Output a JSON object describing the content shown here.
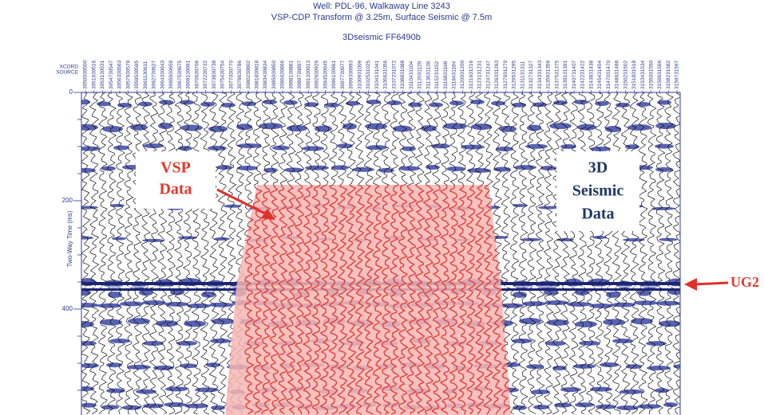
{
  "header": {
    "title": "Well: PDL-96, Walkaway Line 3243",
    "subtitle": "VSP-CDP Transform @ 3.25m, Surface Seismic @ 7.5m",
    "panel": "3Dseismic FF6490b"
  },
  "trace_header": {
    "labels": [
      "XCORD",
      "SOURCE"
    ],
    "traces": [
      "3050030500",
      "3051630516",
      "3053130531",
      "3054730547",
      "3056330563",
      "3057930579",
      "3059530595",
      "3061130611",
      "3062730627",
      "3064330643",
      "3065930659",
      "3067530675",
      "3069130691",
      "3070630706",
      "3072230722",
      "3073830738",
      "3075430754",
      "3077030770",
      "3078630786",
      "3080230802",
      "3081830818",
      "3083430834",
      "3085030850",
      "3086630866",
      "3088130881",
      "3089730897",
      "3091330913",
      "3092930929",
      "3094530945",
      "3096130961",
      "3097730977",
      "3099330993",
      "3100931009",
      "3102531025",
      "3104131041",
      "3105631056",
      "3107231072",
      "3108831088",
      "3110431104",
      "3112031120",
      "3113631136",
      "3115231152",
      "3116831168",
      "3118431184",
      "3120031200",
      "3121631216",
      "3123131231",
      "3124731247",
      "3126331263",
      "3127931279",
      "3129531295",
      "3131131311",
      "3132731327",
      "3134331343",
      "3135931359",
      "3137531375",
      "3139131391",
      "3140731407",
      "3142231422",
      "3143831438",
      "3145431454",
      "3147031470",
      "3148631486",
      "3150231502",
      "3151831518",
      "3153431534",
      "3155031550",
      "3156631566",
      "3158231582",
      "3159731597"
    ]
  },
  "axis": {
    "label": "Two-Way Time (ms)",
    "ticks": [
      "0",
      "200",
      "400"
    ]
  },
  "annotations": {
    "vsp": [
      "VSP",
      "Data"
    ],
    "seismic": [
      "3D",
      "Seismic",
      "Data"
    ],
    "horizon": "UG2"
  }
}
